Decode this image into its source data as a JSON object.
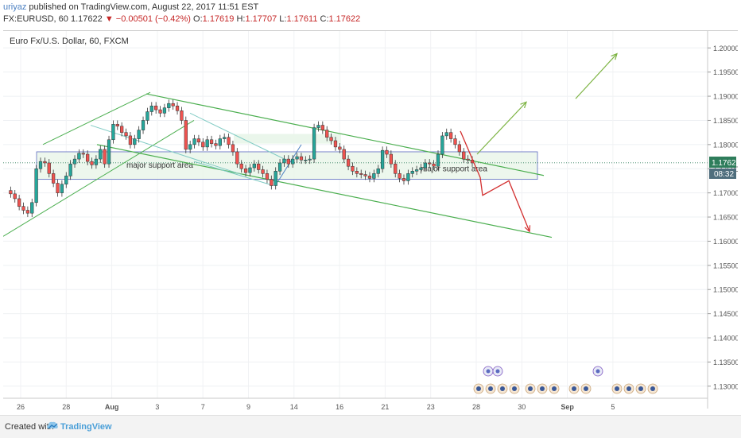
{
  "header": {
    "author": "uriyaz",
    "published": " published on TradingView.com, August 22, 2017 11:51 EST",
    "symbol": "FX:EURUSD, 60",
    "price": "1.17622",
    "change": "−0.00501 (−0.42%)",
    "o_label": "O:",
    "o_value": "1.17619",
    "h_label": "H:",
    "h_value": "1.17707",
    "l_label": "L:",
    "l_value": "1.17611",
    "c_label": "C:",
    "c_value": "1.17622"
  },
  "chart_data": {
    "type": "candlestick",
    "title": "Euro Fx/U.S. Dollar, 60, FXCM",
    "ylim": [
      1.1275,
      1.2035
    ],
    "y_ticks": [
      "1.20000",
      "1.19500",
      "1.19000",
      "1.18500",
      "1.18000",
      "1.17500",
      "1.17000",
      "1.16500",
      "1.16000",
      "1.15500",
      "1.15000",
      "1.14500",
      "1.14000",
      "1.13500",
      "1.13000"
    ],
    "x_ticks": [
      "26",
      "28",
      "Aug",
      "3",
      "7",
      "9",
      "14",
      "16",
      "21",
      "23",
      "28",
      "30",
      "Sep",
      "5"
    ],
    "last_price_label": "1.17622",
    "countdown_label": "08:32",
    "price_path": [
      1.1705,
      1.1698,
      1.1688,
      1.1672,
      1.1664,
      1.1658,
      1.168,
      1.175,
      1.1765,
      1.1762,
      1.174,
      1.172,
      1.17,
      1.1718,
      1.1735,
      1.176,
      1.177,
      1.1782,
      1.178,
      1.1765,
      1.1758,
      1.177,
      1.179,
      1.176,
      1.181,
      1.1842,
      1.1838,
      1.1825,
      1.1818,
      1.18,
      1.1812,
      1.183,
      1.185,
      1.1868,
      1.188,
      1.1872,
      1.1865,
      1.1876,
      1.1885,
      1.188,
      1.187,
      1.185,
      1.179,
      1.18,
      1.1812,
      1.1805,
      1.1795,
      1.181,
      1.1802,
      1.1798,
      1.1812,
      1.1815,
      1.18,
      1.1785,
      1.176,
      1.175,
      1.1742,
      1.1752,
      1.176,
      1.1748,
      1.174,
      1.1728,
      1.1715,
      1.1745,
      1.1762,
      1.177,
      1.176,
      1.177,
      1.1775,
      1.1768,
      1.1768,
      1.177,
      1.1835,
      1.184,
      1.183,
      1.1815,
      1.1808,
      1.1795,
      1.179,
      1.177,
      1.1755,
      1.1745,
      1.174,
      1.1738,
      1.1735,
      1.173,
      1.174,
      1.175,
      1.1788,
      1.178,
      1.176,
      1.174,
      1.173,
      1.1725,
      1.174,
      1.1745,
      1.1748,
      1.1752,
      1.1762,
      1.176,
      1.1755,
      1.178,
      1.1818,
      1.1825,
      1.1812,
      1.18,
      1.1785,
      1.177,
      1.1768,
      1.1762
    ],
    "annotations": {
      "support_labels": [
        "major support area",
        "major support area"
      ]
    },
    "colors": {
      "up": "#26a69a",
      "down": "#ef5350",
      "channel": "#4caf50",
      "bear_arrow": "#d32f2f",
      "bull_arrow": "#7cb342",
      "support_fill": "#e8f5e9",
      "support_border": "#5c6bc0",
      "price_label": "#2e7d5b"
    }
  },
  "footer": {
    "created_with": "Created with",
    "brand": "TradingView"
  }
}
